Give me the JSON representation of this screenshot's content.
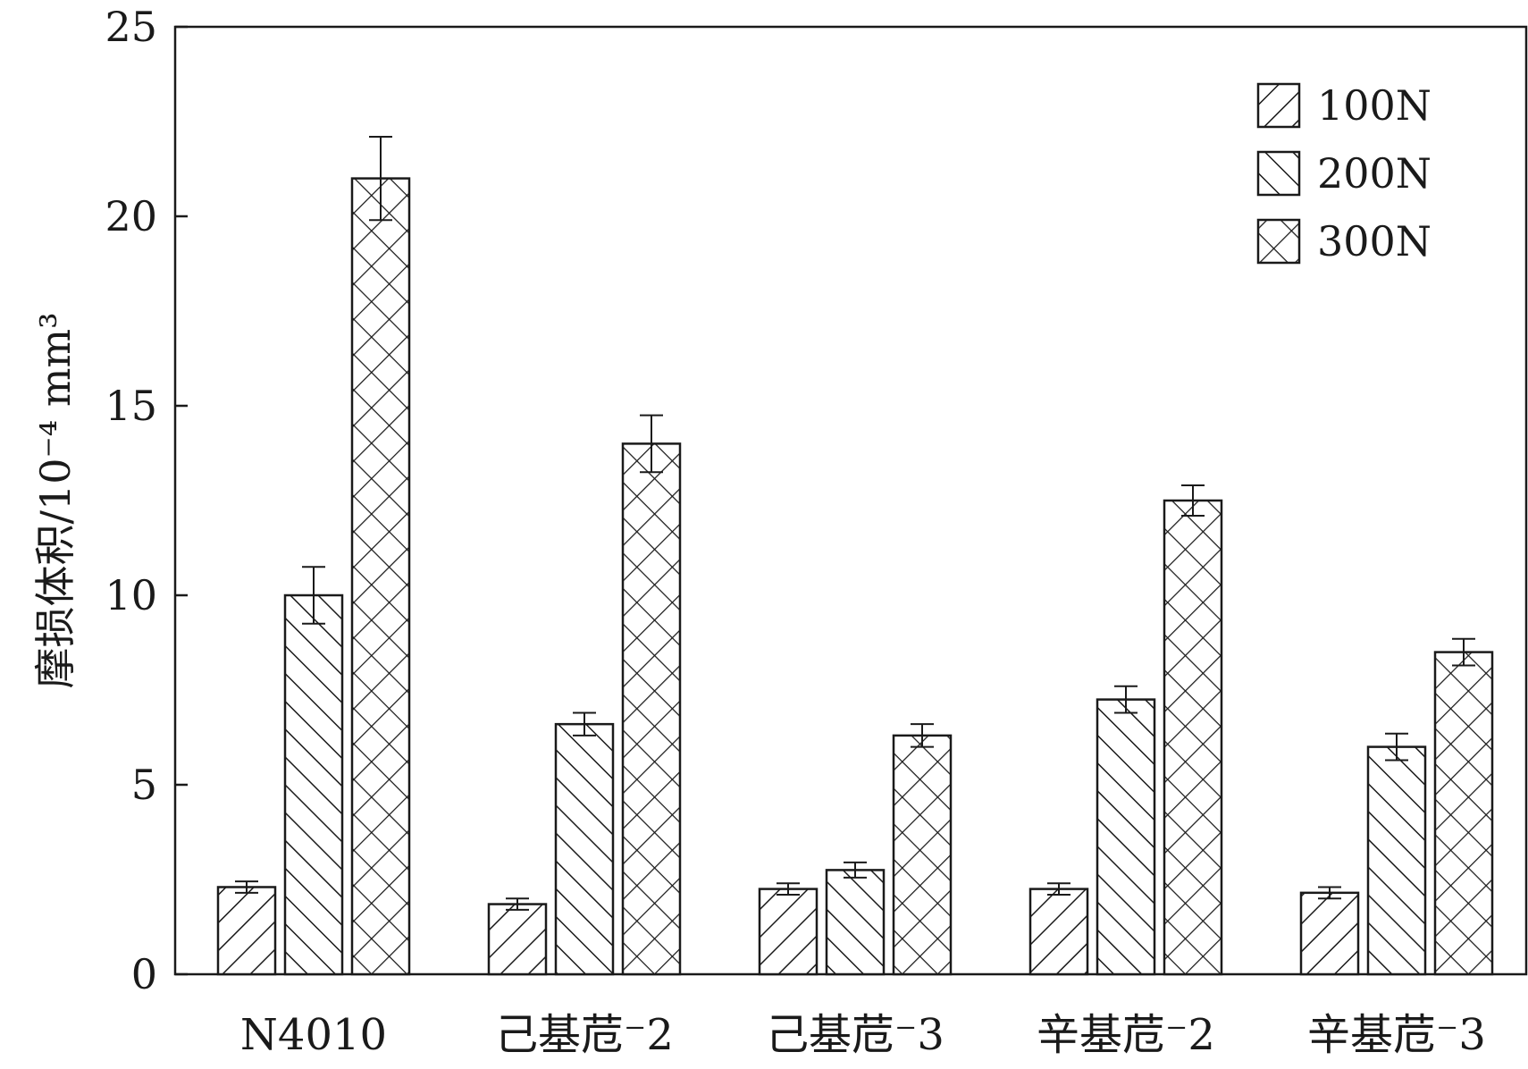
{
  "chart_data": {
    "type": "bar",
    "categories": [
      "N4010",
      "己基苊⁻2",
      "己基苊⁻3",
      "辛基苊⁻2",
      "辛基苊⁻3"
    ],
    "series": [
      {
        "name": "100N",
        "pattern": "hatch-fwd",
        "values": [
          2.3,
          1.85,
          2.25,
          2.25,
          2.15
        ],
        "errors": [
          0.15,
          0.15,
          0.15,
          0.15,
          0.15
        ]
      },
      {
        "name": "200N",
        "pattern": "hatch-back",
        "values": [
          10.0,
          6.6,
          2.75,
          7.25,
          6.0
        ],
        "errors": [
          0.75,
          0.3,
          0.2,
          0.35,
          0.35
        ]
      },
      {
        "name": "300N",
        "pattern": "crosshatch",
        "values": [
          21.0,
          14.0,
          6.3,
          12.5,
          8.5
        ],
        "errors": [
          1.1,
          0.75,
          0.3,
          0.4,
          0.35
        ]
      }
    ],
    "ylabel": "摩损体积/10⁻⁴ mm³",
    "xlabel": "",
    "ylim": [
      0,
      25
    ],
    "yticks": [
      0,
      5,
      10,
      15,
      20,
      25
    ],
    "legend_position": "top-right",
    "grid": false
  }
}
